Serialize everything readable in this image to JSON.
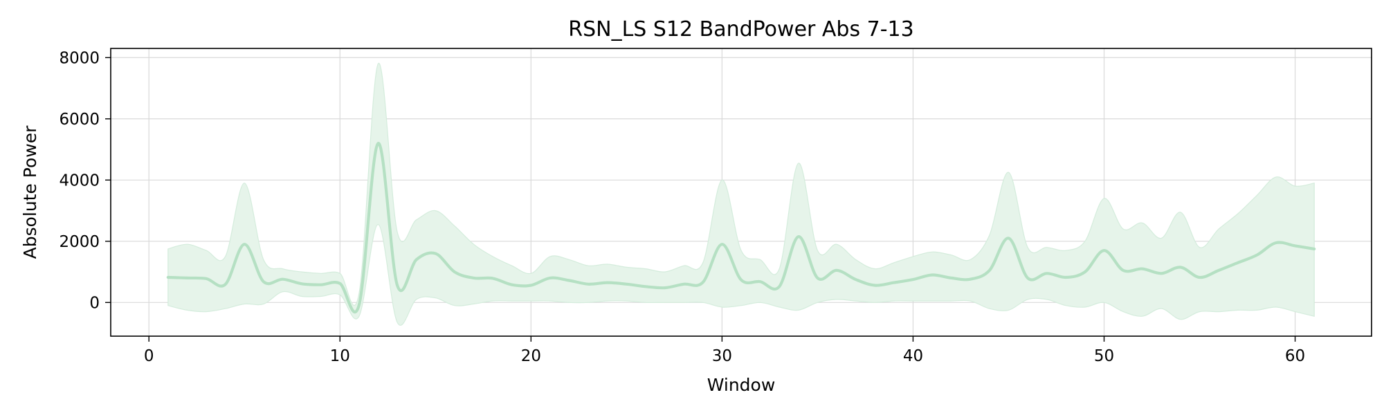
{
  "chart_data": {
    "type": "line",
    "title": "RSN_LS S12 BandPower Abs 7-13",
    "xlabel": "Window",
    "ylabel": "Absolute Power",
    "xlim": [
      -2,
      64
    ],
    "ylim": [
      -1100,
      8300
    ],
    "xticks": [
      0,
      10,
      20,
      30,
      40,
      50,
      60
    ],
    "yticks": [
      0,
      2000,
      4000,
      6000,
      8000
    ],
    "grid": true,
    "colors": {
      "line": "#b5e0c3",
      "band": "#e6f4ea",
      "band_edge": "#d4ecdc"
    },
    "series": [
      {
        "x": [
          1,
          2,
          3,
          4,
          5,
          6,
          7,
          8,
          9,
          10,
          11,
          12,
          13,
          14,
          15,
          16,
          17,
          18,
          19,
          20,
          21,
          22,
          23,
          24,
          25,
          26,
          27,
          28,
          29,
          30,
          31,
          32,
          33,
          34,
          35,
          36,
          37,
          38,
          39,
          40,
          41,
          42,
          43,
          44,
          45,
          46,
          47,
          48,
          49,
          50,
          51,
          52,
          53,
          54,
          55,
          56,
          57,
          58,
          59,
          60,
          61
        ],
        "mean": [
          820,
          800,
          780,
          590,
          1900,
          680,
          760,
          610,
          580,
          620,
          -80,
          5200,
          560,
          1400,
          1600,
          1000,
          800,
          790,
          580,
          560,
          800,
          720,
          600,
          650,
          600,
          520,
          480,
          600,
          660,
          1900,
          740,
          680,
          520,
          2150,
          800,
          1050,
          750,
          560,
          650,
          750,
          900,
          800,
          760,
          1050,
          2100,
          800,
          950,
          820,
          1000,
          1700,
          1050,
          1100,
          950,
          1150,
          820,
          1050,
          1300,
          1550,
          1950,
          1850,
          1750
        ],
        "upper": [
          1750,
          1900,
          1700,
          1500,
          3900,
          1400,
          1100,
          1000,
          950,
          950,
          300,
          7800,
          2300,
          2700,
          3000,
          2500,
          1900,
          1500,
          1200,
          950,
          1500,
          1400,
          1200,
          1250,
          1150,
          1100,
          1000,
          1200,
          1300,
          4000,
          1700,
          1400,
          1100,
          4550,
          1700,
          1900,
          1400,
          1100,
          1300,
          1500,
          1650,
          1550,
          1400,
          2200,
          4250,
          1800,
          1800,
          1700,
          2000,
          3400,
          2400,
          2600,
          2100,
          2950,
          1800,
          2400,
          2900,
          3500,
          4100,
          3800,
          3900
        ],
        "lower": [
          -100,
          -250,
          -300,
          -200,
          -50,
          -50,
          350,
          200,
          200,
          250,
          -450,
          2550,
          -650,
          100,
          150,
          -100,
          -50,
          50,
          50,
          50,
          50,
          0,
          0,
          50,
          50,
          0,
          0,
          0,
          0,
          -150,
          -100,
          0,
          -150,
          -250,
          0,
          100,
          50,
          0,
          50,
          50,
          50,
          50,
          50,
          -200,
          -250,
          100,
          100,
          -100,
          -150,
          0,
          -300,
          -450,
          -200,
          -550,
          -300,
          -300,
          -250,
          -250,
          -150,
          -300,
          -450
        ]
      }
    ]
  }
}
